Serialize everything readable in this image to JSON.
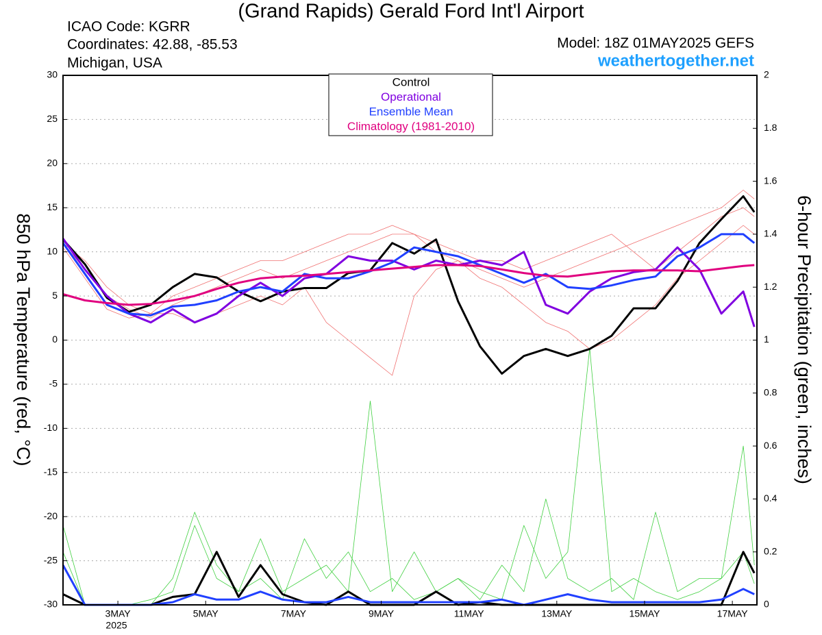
{
  "chart_data": {
    "type": "line",
    "title": "(Grand Rapids) Gerald Ford Int'l Airport",
    "info_left": [
      "ICAO Code: KGRR",
      "Coordinates: 42.88, -85.53",
      "Michigan, USA"
    ],
    "model": "Model: 18Z 01MAY2025 GEFS",
    "site": "weathertogether.net",
    "ylabel": "850 hPa Temperature (red, °C)",
    "y2label": "6-hour Precipitation (green, inches)",
    "year_label": "2025",
    "x": [
      1.75,
      2.25,
      2.75,
      3.25,
      3.75,
      4.25,
      4.75,
      5.25,
      5.75,
      6.25,
      6.75,
      7.25,
      7.75,
      8.25,
      8.75,
      9.25,
      9.75,
      10.25,
      10.75,
      11.25,
      11.75,
      12.25,
      12.75,
      13.25,
      13.75,
      14.25,
      14.75,
      15.25,
      15.75,
      16.25,
      16.75,
      17.25,
      17.5
    ],
    "xlim": [
      1.75,
      17.56
    ],
    "xticks": [
      {
        "value": 3,
        "label": "3MAY"
      },
      {
        "value": 5,
        "label": "5MAY"
      },
      {
        "value": 7,
        "label": "7MAY"
      },
      {
        "value": 9,
        "label": "9MAY"
      },
      {
        "value": 11,
        "label": "11MAY"
      },
      {
        "value": 13,
        "label": "13MAY"
      },
      {
        "value": 15,
        "label": "15MAY"
      },
      {
        "value": 17,
        "label": "17MAY"
      }
    ],
    "ylim": [
      -30,
      30
    ],
    "yticks": [
      -30,
      -25,
      -20,
      -15,
      -10,
      -5,
      0,
      5,
      10,
      15,
      20,
      25,
      30
    ],
    "y2lim": [
      0,
      2
    ],
    "y2ticks": [
      0,
      0.2,
      0.4,
      0.6,
      0.8,
      1,
      1.2,
      1.4,
      1.6,
      1.8,
      2
    ],
    "grid": true,
    "members": [
      {
        "color": "#f07070",
        "values": [
          11,
          8,
          5,
          3.5,
          2.5,
          4,
          5,
          6,
          7,
          8,
          7,
          8,
          9,
          10,
          11,
          12,
          12,
          11,
          10,
          9,
          9,
          8,
          9,
          10,
          11,
          12,
          10,
          8,
          10,
          12,
          14,
          15,
          14
        ]
      },
      {
        "color": "#f07070",
        "values": [
          10.5,
          7,
          3.5,
          2.5,
          3,
          3,
          2,
          3,
          4,
          5,
          4,
          6,
          2,
          0,
          -2,
          -4,
          5,
          8,
          9,
          7,
          6,
          4,
          2,
          1,
          -1,
          0,
          2,
          4,
          7,
          9,
          11,
          13,
          12
        ]
      },
      {
        "color": "#f07070",
        "values": [
          11,
          9,
          6,
          4,
          3,
          5,
          6,
          7,
          8,
          9,
          9,
          10,
          11,
          12,
          12,
          13,
          12,
          10,
          9,
          8,
          7,
          6,
          7,
          8,
          9,
          10,
          11,
          12,
          13,
          14,
          15,
          17,
          16
        ]
      }
    ],
    "precip_members": [
      {
        "color": "#40d040",
        "axis": "y2",
        "values": [
          0.3,
          0,
          0,
          0,
          0.02,
          0.05,
          0.3,
          0.1,
          0.05,
          0.25,
          0.05,
          0.1,
          0.15,
          0.05,
          0.77,
          0.05,
          0.2,
          0.05,
          0.1,
          0.02,
          0.15,
          0.05,
          0.4,
          0.1,
          0.05,
          0.1,
          0.02,
          0.35,
          0.05,
          0.1,
          0.1,
          0.6,
          0.15
        ]
      },
      {
        "color": "#40d040",
        "axis": "y2",
        "values": [
          0.2,
          0,
          0,
          0,
          0,
          0.1,
          0.35,
          0.15,
          0.05,
          0.1,
          0.02,
          0.25,
          0.1,
          0.2,
          0.05,
          0.1,
          0.02,
          0.05,
          0.1,
          0.05,
          0.02,
          0.3,
          0.1,
          0.2,
          0.97,
          0.05,
          0.1,
          0.05,
          0.02,
          0.05,
          0.1,
          0.2,
          0.08
        ]
      }
    ],
    "precip_series": [
      {
        "color": "#000000",
        "axis": "y2",
        "values": [
          0.04,
          0,
          0,
          0,
          0,
          0.03,
          0.04,
          0.2,
          0.03,
          0.15,
          0.04,
          0.01,
          0,
          0.05,
          0,
          0,
          0,
          0.05,
          0,
          0.01,
          0,
          0,
          0,
          0,
          0,
          0,
          0,
          0,
          0,
          0,
          0,
          0.2,
          0.12
        ]
      },
      {
        "color": "#2040ff",
        "axis": "y2",
        "values": [
          0.15,
          0,
          0,
          0,
          0,
          0.01,
          0.04,
          0.02,
          0.02,
          0.05,
          0.02,
          0.01,
          0.01,
          0.03,
          0.01,
          0.01,
          0.01,
          0.01,
          0.01,
          0.01,
          0.02,
          0,
          0.02,
          0.04,
          0.02,
          0.01,
          0.01,
          0.01,
          0.01,
          0.01,
          0.02,
          0.06,
          0.04
        ]
      }
    ],
    "series": [
      {
        "name": "Control",
        "color": "#000000",
        "values": [
          11.4,
          8.6,
          4.8,
          3.2,
          4,
          6,
          7.5,
          7.1,
          5.5,
          4.4,
          5.5,
          5.9,
          5.9,
          7.6,
          7.9,
          11,
          9.8,
          11.4,
          4.4,
          -0.7,
          -3.8,
          -1.8,
          -1,
          -1.8,
          -1,
          0.5,
          3.6,
          3.6,
          6.7,
          11,
          13.7,
          16.3,
          14.5
        ]
      },
      {
        "name": "Operational",
        "color": "#8000e0",
        "values": [
          11.5,
          8,
          5,
          3,
          2,
          3.5,
          2,
          3,
          5,
          6.5,
          5,
          7,
          7.5,
          9.5,
          9,
          9,
          8,
          9,
          8.5,
          9,
          8.5,
          10,
          4,
          3,
          5.5,
          7,
          7.7,
          8,
          10.5,
          8,
          3,
          5.5,
          1.5
        ]
      },
      {
        "name": "Ensemble Mean",
        "color": "#2040ff",
        "values": [
          11,
          7.5,
          4,
          3,
          2.8,
          3.8,
          4,
          4.5,
          5.5,
          6,
          5.5,
          7.5,
          7,
          7,
          7.8,
          8.8,
          10.5,
          10,
          9.5,
          8.5,
          7.5,
          6.5,
          7.5,
          6,
          5.8,
          6.2,
          6.8,
          7.2,
          9.5,
          10.5,
          12,
          12,
          11
        ]
      },
      {
        "name": "Climatology (1981-2010)",
        "color": "#e0007f",
        "values": [
          5.2,
          4.5,
          4.2,
          4,
          4.1,
          4.5,
          5,
          5.8,
          6.5,
          7,
          7.2,
          7.3,
          7.5,
          7.7,
          7.9,
          8.1,
          8.3,
          8.5,
          8.5,
          8.4,
          8,
          7.6,
          7.3,
          7.2,
          7.5,
          7.8,
          7.9,
          7.9,
          7.9,
          7.8,
          8.1,
          8.4,
          8.5
        ]
      }
    ]
  }
}
